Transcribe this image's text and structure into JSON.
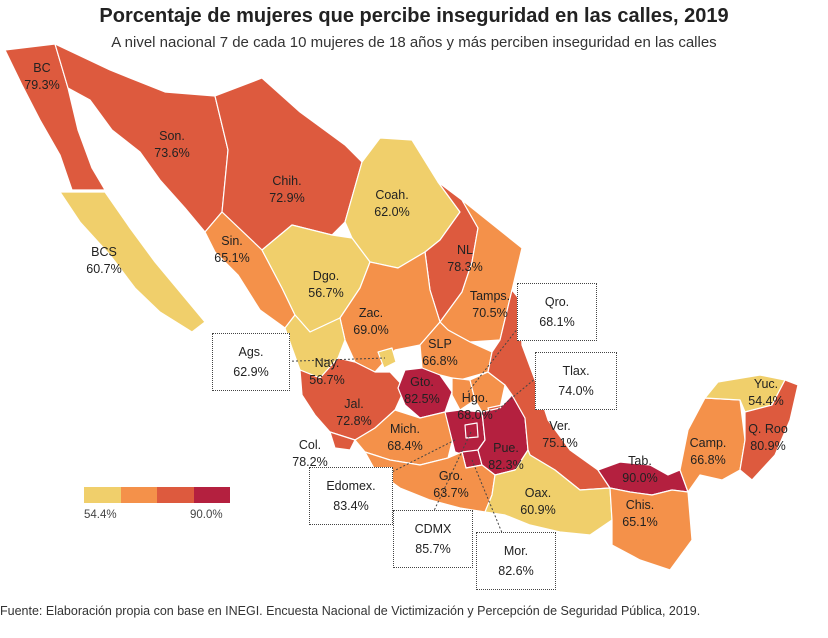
{
  "title": "Porcentaje de mujeres que percibe inseguridad en las calles, 2019",
  "subtitle": "A nivel nacional 7 de cada 10 mujeres de 18 años y más perciben inseguridad en las calles",
  "source": "Fuente: Elaboración propia con base en INEGI. Encuesta Nacional de Victimización y Percepción de Seguridad Pública, 2019.",
  "legend": {
    "min_label": "54.4%",
    "max_label": "90.0%",
    "colors": [
      "#f0cf6b",
      "#f4914a",
      "#dd5a3e",
      "#b4203f"
    ]
  },
  "states": {
    "bc": {
      "name": "BC",
      "value": "79.3%"
    },
    "son": {
      "name": "Son.",
      "value": "73.6%"
    },
    "chih": {
      "name": "Chih.",
      "value": "72.9%"
    },
    "coah": {
      "name": "Coah.",
      "value": "62.0%"
    },
    "bcs": {
      "name": "BCS",
      "value": "60.7%"
    },
    "sin": {
      "name": "Sin.",
      "value": "65.1%"
    },
    "nl": {
      "name": "NL",
      "value": "78.3%"
    },
    "dgo": {
      "name": "Dgo.",
      "value": "56.7%"
    },
    "tamps": {
      "name": "Tamps.",
      "value": "70.5%"
    },
    "zac": {
      "name": "Zac.",
      "value": "69.0%"
    },
    "qro": {
      "name": "Qro.",
      "value": "68.1%"
    },
    "ags": {
      "name": "Ags.",
      "value": "62.9%"
    },
    "slp": {
      "name": "SLP",
      "value": "66.8%"
    },
    "nay": {
      "name": "Nay.",
      "value": "56.7%"
    },
    "tlax": {
      "name": "Tlax.",
      "value": "74.0%"
    },
    "gto": {
      "name": "Gto.",
      "value": "82.5%"
    },
    "yuc": {
      "name": "Yuc.",
      "value": "54.4%"
    },
    "hgo": {
      "name": "Hgo.",
      "value": "68.0%"
    },
    "jal": {
      "name": "Jal.",
      "value": "72.8%"
    },
    "ver": {
      "name": "Ver.",
      "value": "75.1%"
    },
    "qroo": {
      "name": "Q. Roo",
      "value": "80.9%"
    },
    "mich": {
      "name": "Mich.",
      "value": "68.4%"
    },
    "pue": {
      "name": "Pue.",
      "value": "82.3%"
    },
    "camp": {
      "name": "Camp.",
      "value": "66.8%"
    },
    "col": {
      "name": "Col.",
      "value": "78.2%"
    },
    "tab": {
      "name": "Tab.",
      "value": "90.0%"
    },
    "edomex": {
      "name": "Edomex.",
      "value": "83.4%"
    },
    "gro": {
      "name": "Gro.",
      "value": "63.7%"
    },
    "oax": {
      "name": "Oax.",
      "value": "60.9%"
    },
    "chis": {
      "name": "Chis.",
      "value": "65.1%"
    },
    "cdmx": {
      "name": "CDMX",
      "value": "85.7%"
    },
    "mor": {
      "name": "Mor.",
      "value": "82.6%"
    }
  }
}
